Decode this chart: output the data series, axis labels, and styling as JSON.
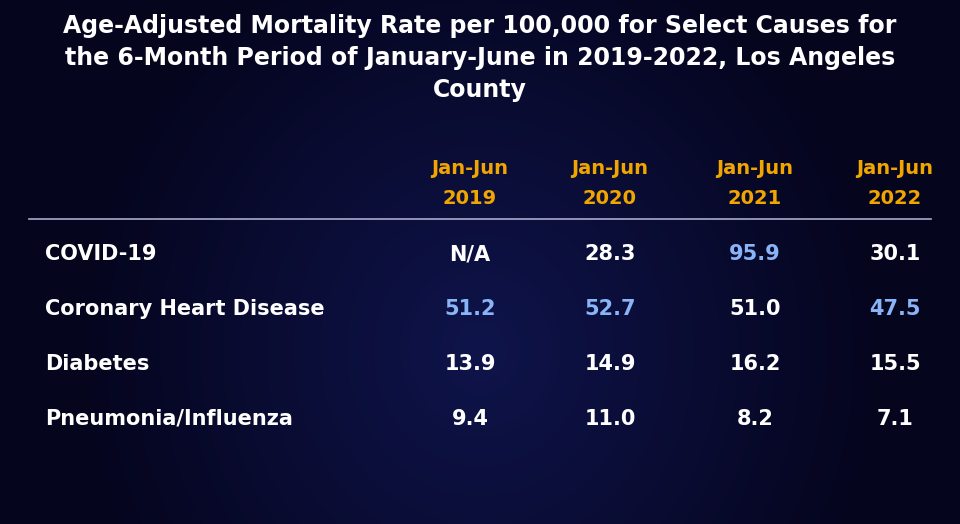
{
  "title_line1": "Age-Adjusted Mortality Rate per 100,000 for Select Causes for",
  "title_line2": "the 6-Month Period of January-June in 2019-2022, Los Angeles",
  "title_line3": "County",
  "background_color": "#08082a",
  "col_header_color": "#f0a500",
  "col_headers": [
    "Jan-Jun\n2019",
    "Jan-Jun\n2020",
    "Jan-Jun\n2021",
    "Jan-Jun\n2022"
  ],
  "rows": [
    {
      "label": "COVID-19",
      "values": [
        "N/A",
        "28.3",
        "95.9",
        "30.1"
      ],
      "value_colors": [
        "#ffffff",
        "#ffffff",
        "#8ab4f8",
        "#ffffff"
      ]
    },
    {
      "label": "Coronary Heart Disease",
      "values": [
        "51.2",
        "52.7",
        "51.0",
        "47.5"
      ],
      "value_colors": [
        "#8ab4f8",
        "#8ab4f8",
        "#ffffff",
        "#8ab4f8"
      ]
    },
    {
      "label": "Diabetes",
      "values": [
        "13.9",
        "14.9",
        "16.2",
        "15.5"
      ],
      "value_colors": [
        "#ffffff",
        "#ffffff",
        "#ffffff",
        "#ffffff"
      ]
    },
    {
      "label": "Pneumonia/Influenza",
      "values": [
        "9.4",
        "11.0",
        "8.2",
        "7.1"
      ],
      "value_colors": [
        "#ffffff",
        "#ffffff",
        "#ffffff",
        "#ffffff"
      ]
    }
  ],
  "label_color": "#ffffff",
  "divider_color": "#aaaacc",
  "title_color": "#ffffff",
  "title_fontsize": 17,
  "header_fontsize": 14,
  "cell_fontsize": 15,
  "label_fontsize": 15
}
